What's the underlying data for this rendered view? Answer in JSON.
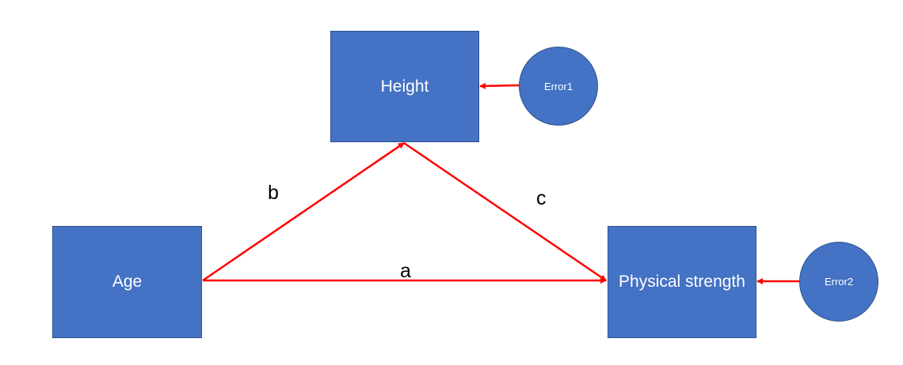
{
  "nodes": {
    "age": "Age",
    "height": "Height",
    "physical_strength": "Physical strength",
    "error1": "Error1",
    "error2": "Error2"
  },
  "paths": {
    "a": "a",
    "b": "b",
    "c": "c"
  },
  "colors": {
    "node_fill": "#4472c4",
    "node_border": "#2f528f",
    "arrow": "#ff0000",
    "label": "#000000"
  }
}
